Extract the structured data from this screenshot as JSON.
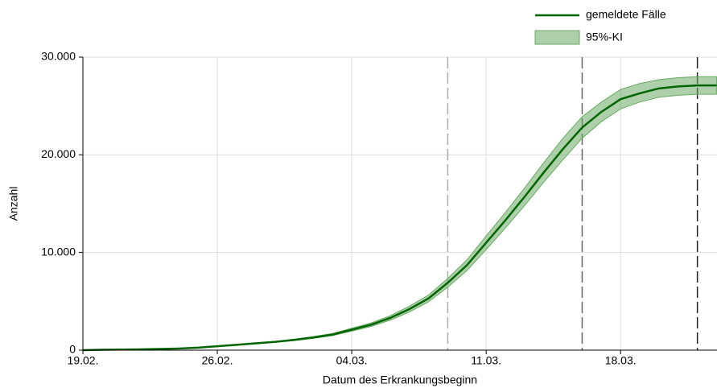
{
  "chart_data": {
    "type": "line",
    "xlabel": "Datum des Erkrankungsbeginn",
    "ylabel": "Anzahl",
    "x": [
      0,
      1,
      2,
      3,
      4,
      5,
      6,
      7,
      8,
      9,
      10,
      11,
      12,
      13,
      14,
      15,
      16,
      17,
      18,
      19,
      20,
      21,
      22,
      23,
      24,
      25,
      26,
      27,
      28,
      29,
      30,
      31,
      32,
      33
    ],
    "xlim": [
      0,
      33
    ],
    "xticks": [
      {
        "value": 0,
        "label": "19.02."
      },
      {
        "value": 7,
        "label": "26.02."
      },
      {
        "value": 14,
        "label": "04.03."
      },
      {
        "value": 21,
        "label": "11.03."
      },
      {
        "value": 28,
        "label": "18.03."
      }
    ],
    "ylim": [
      0,
      30000
    ],
    "yticks": [
      0,
      {
        "value": 10000,
        "label": "10.000"
      },
      {
        "value": 20000,
        "label": "20.000"
      },
      {
        "value": 30000,
        "label": "30.000"
      }
    ],
    "grid": true,
    "legend": "top-right",
    "series": [
      {
        "name": "gemeldete Fälle",
        "color": "#006400",
        "values": [
          0,
          40,
          60,
          80,
          120,
          170,
          260,
          400,
          550,
          700,
          850,
          1050,
          1300,
          1600,
          2100,
          2600,
          3300,
          4200,
          5300,
          6900,
          8700,
          11000,
          13300,
          15700,
          18200,
          20600,
          22800,
          24400,
          25700,
          26300,
          26800,
          27000,
          27100,
          27100
        ]
      }
    ],
    "band": {
      "name": "95%-KI",
      "color": "#6aaa64",
      "lower": [
        0,
        35,
        55,
        75,
        110,
        155,
        240,
        370,
        510,
        650,
        790,
        980,
        1210,
        1490,
        1950,
        2420,
        3070,
        3900,
        4950,
        6450,
        8150,
        10300,
        12500,
        14800,
        17200,
        19500,
        21700,
        23400,
        24700,
        25400,
        25900,
        26100,
        26200,
        26200
      ],
      "upper": [
        0,
        45,
        65,
        85,
        130,
        185,
        280,
        430,
        590,
        750,
        910,
        1120,
        1390,
        1710,
        2250,
        2780,
        3530,
        4500,
        5650,
        7350,
        9250,
        11700,
        14100,
        16600,
        19200,
        21700,
        23900,
        25400,
        26700,
        27300,
        27700,
        27900,
        28000,
        28000
      ]
    },
    "vlines": [
      {
        "x": 19,
        "color": "#aaaaaa"
      },
      {
        "x": 26,
        "color": "#666666"
      },
      {
        "x": 32,
        "color": "#222222"
      }
    ]
  }
}
